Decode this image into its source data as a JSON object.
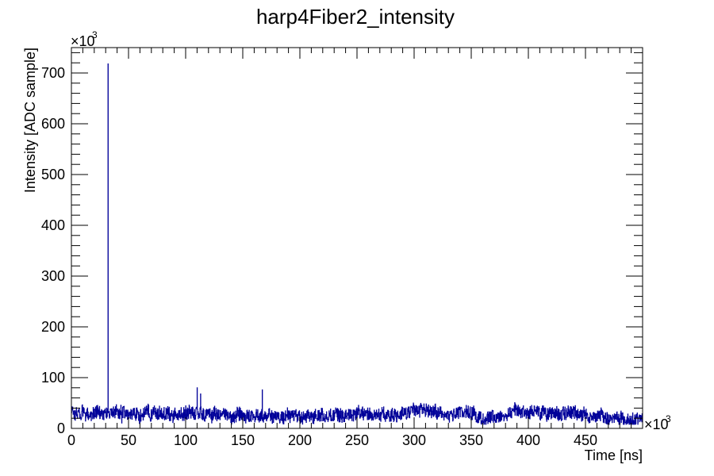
{
  "chart_data": {
    "type": "line",
    "title": "harp4Fiber2_intensity",
    "xlabel": "Time [ns]",
    "ylabel": "Intensity [ADC sample]",
    "x_multiplier": "×10",
    "y_multiplier": "×10",
    "exponent": "3",
    "xlim": [
      0,
      500
    ],
    "ylim": [
      0,
      750
    ],
    "x_major_ticks": [
      0,
      50,
      100,
      150,
      200,
      250,
      300,
      350,
      400,
      450
    ],
    "x_tick_labels": [
      "0",
      "50",
      "100",
      "150",
      "200",
      "250",
      "300",
      "350",
      "400",
      "450"
    ],
    "y_major_ticks": [
      0,
      100,
      200,
      300,
      400,
      500,
      600,
      700
    ],
    "y_tick_labels": [
      "0",
      "100",
      "200",
      "300",
      "400",
      "500",
      "600",
      "700"
    ],
    "grid": false,
    "legend": "none",
    "series": [
      {
        "color": "#000099",
        "x_step": 1,
        "baseline": [
          30,
          38,
          31,
          24,
          31,
          29,
          33,
          28,
          25,
          32,
          35,
          31,
          24,
          20,
          30,
          30,
          23,
          28,
          27,
          31,
          29,
          30,
          33,
          33,
          32,
          30,
          32,
          31,
          27,
          26,
          32,
          32,
          28,
          30,
          27,
          27,
          35,
          28,
          30,
          36,
          33,
          29,
          30,
          37,
          23,
          31,
          32,
          24,
          27,
          27,
          28,
          28,
          28,
          26,
          30,
          32,
          28,
          31,
          26,
          20,
          24,
          28,
          27,
          27,
          33,
          33,
          32,
          35,
          35,
          26,
          27,
          35,
          36,
          33,
          33,
          30,
          28,
          31,
          29,
          26,
          25,
          30,
          29,
          30,
          32,
          33,
          25,
          27,
          29,
          22,
          30,
          26,
          20,
          23,
          30,
          27,
          28,
          28,
          29,
          26,
          34,
          28,
          30,
          33,
          30,
          31,
          32,
          29,
          27,
          31,
          30,
          31,
          28,
          30,
          30,
          27,
          25,
          24,
          31,
          33,
          32,
          28,
          23,
          24,
          28,
          32,
          30,
          25,
          25,
          25,
          28,
          24,
          28,
          28,
          24,
          28,
          27,
          25,
          28,
          24,
          21,
          26,
          25,
          23,
          24,
          32,
          25,
          29,
          28,
          24,
          26,
          22,
          21,
          22,
          25,
          27,
          21,
          22,
          23,
          25,
          27,
          24,
          25,
          24,
          25,
          24,
          31,
          26,
          25,
          22,
          23,
          23,
          23,
          27,
          26,
          23,
          23,
          23,
          24,
          25,
          20,
          20,
          21,
          23,
          26,
          20,
          22,
          22,
          24,
          28,
          25,
          22,
          28,
          25,
          23,
          22,
          24,
          25,
          23,
          26,
          22,
          19,
          21,
          20,
          26,
          23,
          24,
          24,
          24,
          29,
          24,
          21,
          22,
          23,
          27,
          26,
          24,
          25,
          26,
          28,
          26,
          22,
          22,
          24,
          23,
          27,
          24,
          26,
          23,
          25,
          25,
          29,
          25,
          27,
          26,
          24,
          29,
          23,
          19,
          22,
          24,
          24,
          23,
          26,
          24,
          25,
          30,
          22,
          28,
          30,
          31,
          35,
          34,
          26,
          32,
          30,
          28,
          31,
          29,
          28,
          30,
          29,
          25,
          24,
          27,
          32,
          25,
          24,
          26,
          26,
          27,
          26,
          30,
          32,
          26,
          25,
          30,
          29,
          23,
          24,
          26,
          28,
          24,
          27,
          23,
          23,
          29,
          30,
          29,
          31,
          31,
          31,
          32,
          30,
          30,
          31,
          28,
          30,
          33,
          38,
          36,
          37,
          37,
          36,
          35,
          33,
          39,
          42,
          39,
          36,
          32,
          39,
          36,
          31,
          31,
          32,
          33,
          31,
          37,
          34,
          28,
          30,
          32,
          30,
          27,
          24,
          25,
          26,
          23,
          25,
          26,
          23,
          24,
          27,
          27,
          27,
          26,
          28,
          29,
          30,
          33,
          32,
          32,
          31,
          33,
          34,
          33,
          32,
          30,
          32,
          29,
          30,
          32,
          27,
          24,
          24,
          22,
          25,
          20,
          19,
          20,
          18,
          18,
          19,
          20,
          20,
          24,
          21,
          25,
          23,
          25,
          20,
          21,
          26,
          23,
          23,
          26,
          28,
          26,
          29,
          30,
          28,
          28,
          30,
          31,
          32,
          34,
          34,
          39,
          37,
          37,
          36,
          39,
          34,
          32,
          36,
          30,
          36,
          31,
          34,
          31,
          30,
          34,
          35,
          33,
          32,
          32,
          30,
          33,
          33,
          27,
          29,
          30,
          36,
          29,
          28,
          26,
          28,
          27,
          29,
          28,
          28,
          28,
          32,
          33,
          32,
          26,
          27,
          26,
          26,
          29,
          31,
          29,
          27,
          30,
          32,
          33,
          33,
          30,
          31,
          29,
          32,
          31,
          27,
          27,
          29,
          26,
          25,
          30,
          29,
          27,
          24,
          23,
          23,
          20,
          24,
          23,
          24,
          22,
          25,
          21,
          24,
          26,
          27,
          28,
          25,
          22,
          23,
          22,
          20,
          19,
          20,
          18,
          21,
          25,
          20,
          25,
          20,
          22,
          17,
          20,
          22,
          18,
          18
        ],
        "peaks": [
          [
            32,
            718
          ],
          [
            110,
            80
          ],
          [
            167,
            76
          ],
          [
            113,
            68
          ]
        ]
      }
    ]
  }
}
